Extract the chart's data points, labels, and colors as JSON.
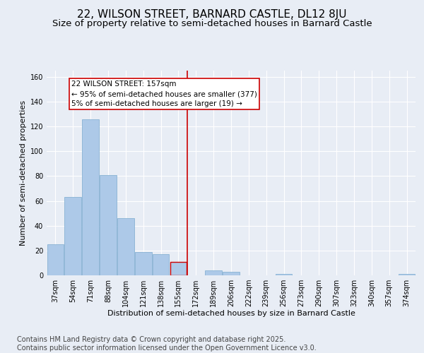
{
  "title": "22, WILSON STREET, BARNARD CASTLE, DL12 8JU",
  "subtitle": "Size of property relative to semi-detached houses in Barnard Castle",
  "xlabel": "Distribution of semi-detached houses by size in Barnard Castle",
  "ylabel": "Number of semi-detached properties",
  "categories": [
    "37sqm",
    "54sqm",
    "71sqm",
    "88sqm",
    "104sqm",
    "121sqm",
    "138sqm",
    "155sqm",
    "172sqm",
    "189sqm",
    "206sqm",
    "222sqm",
    "239sqm",
    "256sqm",
    "273sqm",
    "290sqm",
    "307sqm",
    "323sqm",
    "340sqm",
    "357sqm",
    "374sqm"
  ],
  "values": [
    25,
    63,
    126,
    81,
    46,
    19,
    17,
    11,
    0,
    4,
    3,
    0,
    0,
    1,
    0,
    0,
    0,
    0,
    0,
    0,
    1
  ],
  "bar_color": "#adc9e8",
  "bar_edge_color": "#7aaace",
  "highlight_index": 7,
  "vline_x": 7.5,
  "vline_color": "#cc0000",
  "annotation_text": "22 WILSON STREET: 157sqm\n← 95% of semi-detached houses are smaller (377)\n5% of semi-detached houses are larger (19) →",
  "ylim": [
    0,
    165
  ],
  "yticks": [
    0,
    20,
    40,
    60,
    80,
    100,
    120,
    140,
    160
  ],
  "background_color": "#e8edf5",
  "plot_bg_color": "#e8edf5",
  "footer_line1": "Contains HM Land Registry data © Crown copyright and database right 2025.",
  "footer_line2": "Contains public sector information licensed under the Open Government Licence v3.0.",
  "title_fontsize": 11,
  "subtitle_fontsize": 9.5,
  "axis_label_fontsize": 8,
  "tick_fontsize": 7,
  "footer_fontsize": 7,
  "annotation_fontsize": 7.5
}
